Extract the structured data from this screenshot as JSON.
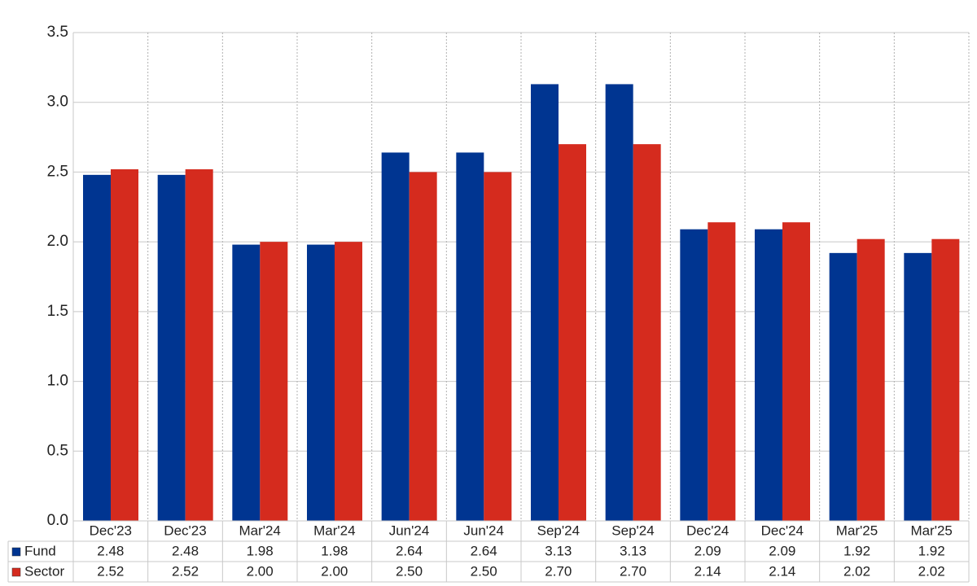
{
  "chart_data": {
    "type": "bar",
    "categories": [
      "Dec'23",
      "Dec'23",
      "Mar'24",
      "Mar'24",
      "Jun'24",
      "Jun'24",
      "Sep'24",
      "Sep'24",
      "Dec'24",
      "Dec'24",
      "Mar'25",
      "Mar'25"
    ],
    "series": [
      {
        "name": "Fund",
        "color": "#003591",
        "values": [
          2.48,
          2.48,
          1.98,
          1.98,
          2.64,
          2.64,
          3.13,
          3.13,
          2.09,
          2.09,
          1.92,
          1.92
        ],
        "value_labels": [
          "2.48",
          "2.48",
          "1.98",
          "1.98",
          "2.64",
          "2.64",
          "3.13",
          "3.13",
          "2.09",
          "2.09",
          "1.92",
          "1.92"
        ]
      },
      {
        "name": "Sector",
        "color": "#d52b1e",
        "values": [
          2.52,
          2.52,
          2.0,
          2.0,
          2.5,
          2.5,
          2.7,
          2.7,
          2.14,
          2.14,
          2.02,
          2.02
        ],
        "value_labels": [
          "2.52",
          "2.52",
          "2.00",
          "2.00",
          "2.50",
          "2.50",
          "2.70",
          "2.70",
          "2.14",
          "2.14",
          "2.02",
          "2.02"
        ]
      }
    ],
    "ylim": [
      0,
      3.5
    ],
    "yticks": [
      {
        "value": 0,
        "label": "0.0"
      },
      0.5,
      {
        "value": 1,
        "label": "1.0"
      },
      1.5,
      {
        "value": 2,
        "label": "2.0"
      },
      2.5,
      {
        "value": 3,
        "label": "3.0"
      },
      3.5
    ],
    "grid": true
  }
}
